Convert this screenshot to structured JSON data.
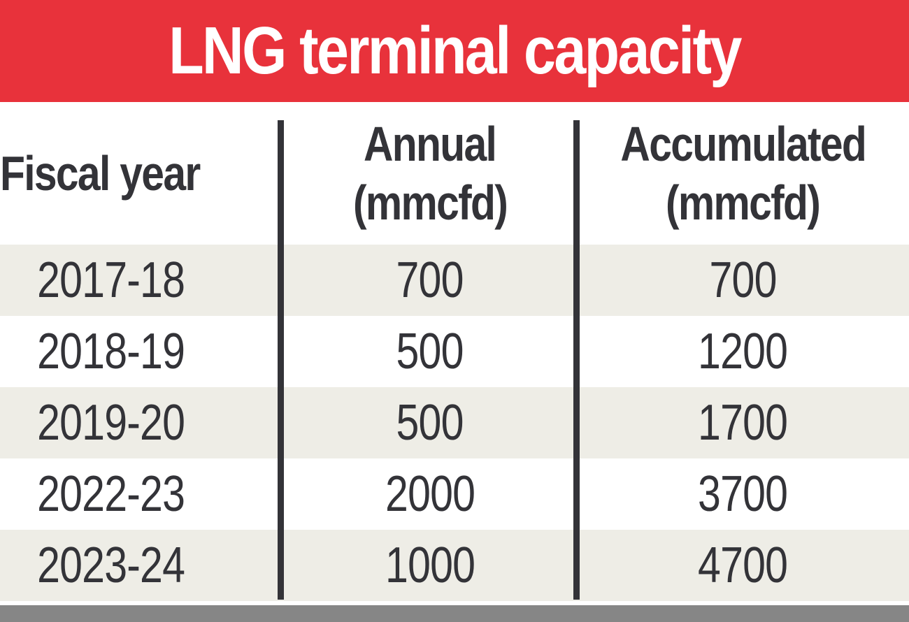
{
  "title": "LNG terminal capacity",
  "colors": {
    "title_background": "#e8323b",
    "title_text": "#ffffff",
    "row_shade": "#eeede6",
    "text": "#333338",
    "footer_bar": "#868686"
  },
  "chart_data": {
    "type": "table",
    "title": "LNG terminal capacity",
    "columns": [
      {
        "key": "fiscal_year",
        "label_lines": [
          "Fiscal year"
        ]
      },
      {
        "key": "annual",
        "label_lines": [
          "Annual",
          "(mmcfd)"
        ]
      },
      {
        "key": "accumulated",
        "label_lines": [
          "Accumulated",
          "(mmcfd)"
        ]
      }
    ],
    "rows": [
      {
        "fiscal_year": "2017-18",
        "annual": 700,
        "accumulated": 700
      },
      {
        "fiscal_year": "2018-19",
        "annual": 500,
        "accumulated": 1200
      },
      {
        "fiscal_year": "2019-20",
        "annual": 500,
        "accumulated": 1700
      },
      {
        "fiscal_year": "2022-23",
        "annual": 2000,
        "accumulated": 3700
      },
      {
        "fiscal_year": "2023-24",
        "annual": 1000,
        "accumulated": 4700
      }
    ]
  }
}
